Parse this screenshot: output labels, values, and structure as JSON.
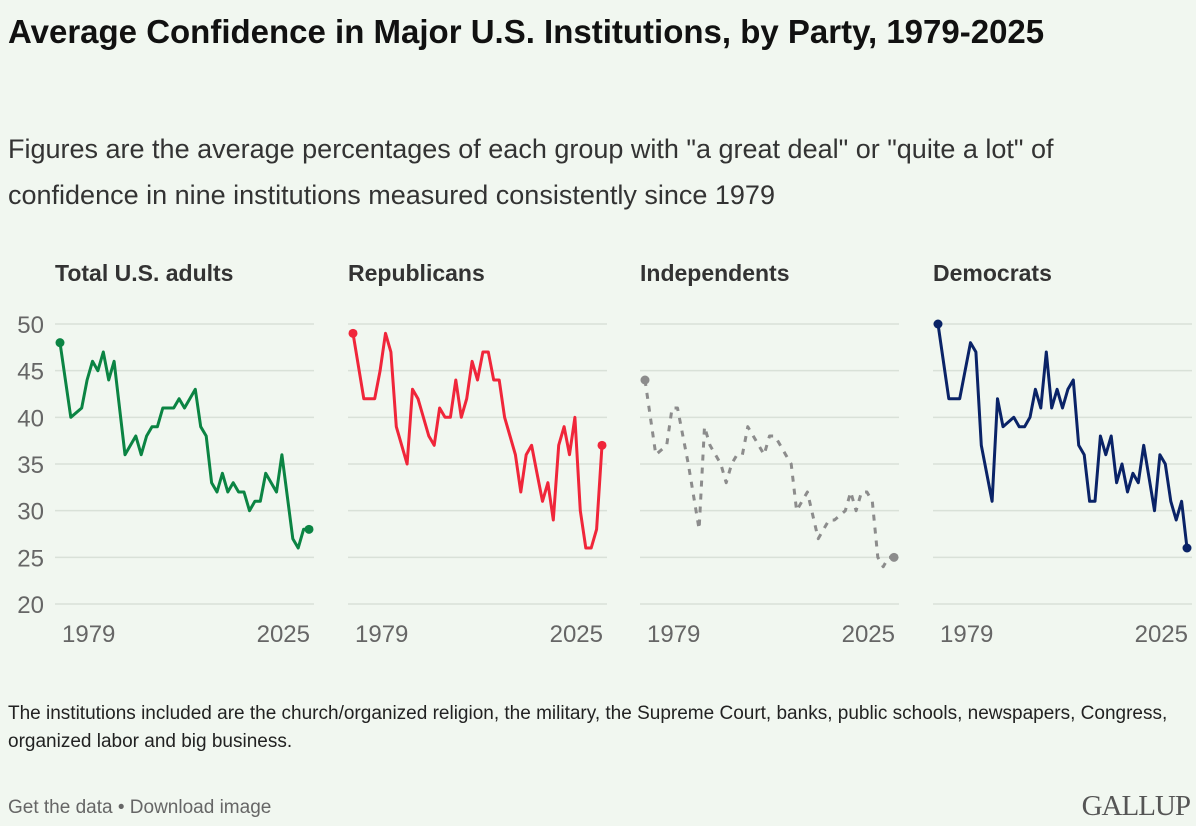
{
  "title": "Average Confidence in Major U.S. Institutions, by Party, 1979-2025",
  "subtitle": "Figures are the average percentages of each group with \"a great deal\" or \"quite a lot\" of confidence in nine institutions measured consistently since 1979",
  "note": "The institutions included are the church/organized religion, the military, the Supreme Court, banks, public schools, newspapers, Congress, organized labor and big business.",
  "links": {
    "get_data": "Get the data",
    "separator": "•",
    "download": "Download image"
  },
  "logo": "GALLUP",
  "chart_data": {
    "type": "line",
    "layout": "small multiples",
    "ylim": [
      20,
      50
    ],
    "y_ticks": [
      "50",
      "45",
      "40",
      "35",
      "30",
      "25",
      "20"
    ],
    "x_tick_labels": [
      "1979",
      "2025"
    ],
    "grid": true,
    "panels": [
      {
        "name": "Total U.S. adults",
        "color": "#0b8443",
        "style": "solid",
        "points": [
          [
            1979,
            48
          ],
          [
            1981,
            40
          ],
          [
            1983,
            41
          ],
          [
            1984,
            44
          ],
          [
            1985,
            46
          ],
          [
            1986,
            45
          ],
          [
            1987,
            47
          ],
          [
            1988,
            44
          ],
          [
            1989,
            46
          ],
          [
            1991,
            36
          ],
          [
            1993,
            38
          ],
          [
            1994,
            36
          ],
          [
            1995,
            38
          ],
          [
            1996,
            39
          ],
          [
            1997,
            39
          ],
          [
            1998,
            41
          ],
          [
            2000,
            41
          ],
          [
            2001,
            42
          ],
          [
            2002,
            41
          ],
          [
            2004,
            43
          ],
          [
            2005,
            39
          ],
          [
            2006,
            38
          ],
          [
            2007,
            33
          ],
          [
            2008,
            32
          ],
          [
            2009,
            34
          ],
          [
            2010,
            32
          ],
          [
            2011,
            33
          ],
          [
            2012,
            32
          ],
          [
            2013,
            32
          ],
          [
            2014,
            30
          ],
          [
            2015,
            31
          ],
          [
            2016,
            31
          ],
          [
            2017,
            34
          ],
          [
            2019,
            32
          ],
          [
            2020,
            36
          ],
          [
            2022,
            27
          ],
          [
            2023,
            26
          ],
          [
            2024,
            28
          ],
          [
            2025,
            28
          ]
        ]
      },
      {
        "name": "Republicans",
        "color": "#f0263a",
        "style": "solid",
        "points": [
          [
            1979,
            49
          ],
          [
            1981,
            42
          ],
          [
            1983,
            42
          ],
          [
            1984,
            45
          ],
          [
            1985,
            49
          ],
          [
            1986,
            47
          ],
          [
            1987,
            39
          ],
          [
            1989,
            35
          ],
          [
            1990,
            43
          ],
          [
            1991,
            42
          ],
          [
            1993,
            38
          ],
          [
            1994,
            37
          ],
          [
            1995,
            41
          ],
          [
            1996,
            40
          ],
          [
            1997,
            40
          ],
          [
            1998,
            44
          ],
          [
            1999,
            40
          ],
          [
            2000,
            42
          ],
          [
            2001,
            46
          ],
          [
            2002,
            44
          ],
          [
            2003,
            47
          ],
          [
            2004,
            47
          ],
          [
            2005,
            44
          ],
          [
            2006,
            44
          ],
          [
            2007,
            40
          ],
          [
            2009,
            36
          ],
          [
            2010,
            32
          ],
          [
            2011,
            36
          ],
          [
            2012,
            37
          ],
          [
            2013,
            34
          ],
          [
            2014,
            31
          ],
          [
            2015,
            33
          ],
          [
            2016,
            29
          ],
          [
            2017,
            37
          ],
          [
            2018,
            39
          ],
          [
            2019,
            36
          ],
          [
            2020,
            40
          ],
          [
            2021,
            30
          ],
          [
            2022,
            26
          ],
          [
            2023,
            26
          ],
          [
            2024,
            28
          ],
          [
            2025,
            37
          ]
        ]
      },
      {
        "name": "Independents",
        "color": "#8c8c8c",
        "style": "dashed",
        "points": [
          [
            1979,
            44
          ],
          [
            1981,
            36
          ],
          [
            1983,
            37
          ],
          [
            1984,
            41
          ],
          [
            1985,
            41
          ],
          [
            1987,
            35
          ],
          [
            1989,
            28
          ],
          [
            1990,
            39
          ],
          [
            1991,
            37
          ],
          [
            1993,
            35
          ],
          [
            1994,
            33
          ],
          [
            1995,
            35
          ],
          [
            1996,
            36
          ],
          [
            1997,
            36
          ],
          [
            1998,
            39
          ],
          [
            2000,
            37
          ],
          [
            2001,
            36
          ],
          [
            2002,
            38
          ],
          [
            2003,
            38
          ],
          [
            2004,
            37
          ],
          [
            2005,
            36
          ],
          [
            2006,
            35
          ],
          [
            2007,
            30
          ],
          [
            2008,
            31
          ],
          [
            2009,
            32
          ],
          [
            2011,
            27
          ],
          [
            2012,
            28
          ],
          [
            2013,
            29
          ],
          [
            2014,
            29
          ],
          [
            2016,
            30
          ],
          [
            2017,
            32
          ],
          [
            2018,
            30
          ],
          [
            2019,
            32
          ],
          [
            2020,
            32
          ],
          [
            2021,
            31
          ],
          [
            2022,
            25
          ],
          [
            2023,
            24
          ],
          [
            2024,
            25
          ],
          [
            2025,
            25
          ]
        ]
      },
      {
        "name": "Democrats",
        "color": "#0a2367",
        "style": "solid",
        "points": [
          [
            1979,
            50
          ],
          [
            1981,
            42
          ],
          [
            1983,
            42
          ],
          [
            1985,
            48
          ],
          [
            1986,
            47
          ],
          [
            1987,
            37
          ],
          [
            1989,
            31
          ],
          [
            1990,
            42
          ],
          [
            1991,
            39
          ],
          [
            1993,
            40
          ],
          [
            1994,
            39
          ],
          [
            1995,
            39
          ],
          [
            1996,
            40
          ],
          [
            1997,
            43
          ],
          [
            1998,
            41
          ],
          [
            1999,
            47
          ],
          [
            2000,
            41
          ],
          [
            2001,
            43
          ],
          [
            2002,
            41
          ],
          [
            2003,
            43
          ],
          [
            2004,
            44
          ],
          [
            2005,
            37
          ],
          [
            2006,
            36
          ],
          [
            2007,
            31
          ],
          [
            2008,
            31
          ],
          [
            2009,
            38
          ],
          [
            2010,
            36
          ],
          [
            2011,
            38
          ],
          [
            2012,
            33
          ],
          [
            2013,
            35
          ],
          [
            2014,
            32
          ],
          [
            2015,
            34
          ],
          [
            2016,
            33
          ],
          [
            2017,
            37
          ],
          [
            2019,
            30
          ],
          [
            2020,
            36
          ],
          [
            2021,
            35
          ],
          [
            2022,
            31
          ],
          [
            2023,
            29
          ],
          [
            2024,
            31
          ],
          [
            2025,
            26
          ]
        ]
      }
    ]
  }
}
